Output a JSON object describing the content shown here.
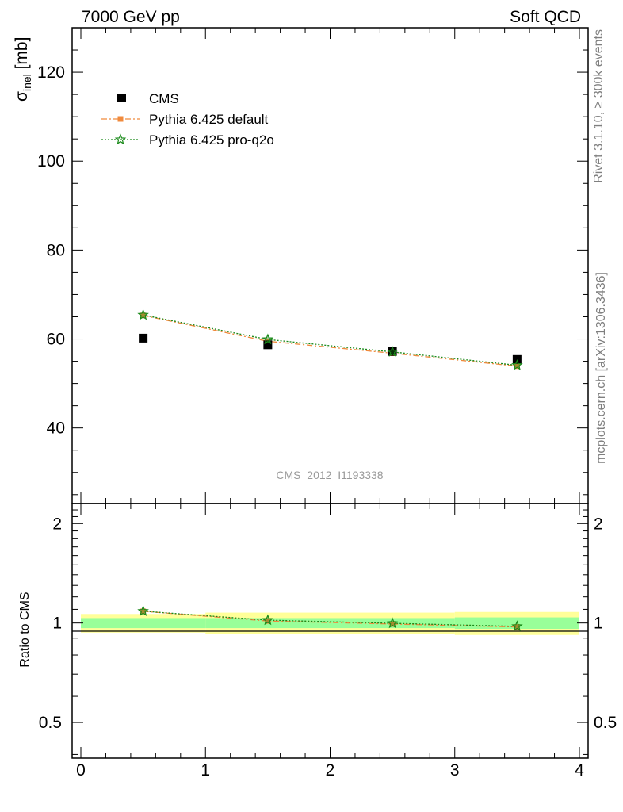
{
  "header": {
    "left": "7000 GeV pp",
    "right": "Soft QCD"
  },
  "side_text": {
    "rivet": "Rivet 3.1.10, ≥ 300k events",
    "mcplots": "mcplots.cern.ch [arXiv:1306.3436]"
  },
  "analysis_id": "CMS_2012_I1193338",
  "colors": {
    "cms": "#000000",
    "pythia_default": "#f08a3c",
    "pythia_proq2o": "#1a8a1a",
    "band_inner": "#99ff99",
    "band_outer": "#ffff99"
  },
  "icons": {
    "cms_marker": "filled-square",
    "pythia_default_marker": "filled-square",
    "pythia_proq2o_marker": "open-star"
  },
  "chart_data": [
    {
      "type": "scatter",
      "panel": "main",
      "ylabel": "σinel [mb]",
      "ylabel_main": "σ",
      "ylabel_sub": "inel",
      "ylabel_unit": " [mb]",
      "xlim": [
        -0.07,
        4.07
      ],
      "ylim": [
        23,
        130
      ],
      "yticks": [
        40,
        60,
        80,
        100,
        120
      ],
      "xticks": [
        0,
        1,
        2,
        3,
        4
      ],
      "legend_position": "top-left",
      "series": [
        {
          "key": "cms",
          "name": "CMS",
          "x": [
            0.5,
            1.5,
            2.5,
            3.5
          ],
          "y": [
            60.2,
            58.7,
            57.2,
            55.4
          ]
        },
        {
          "key": "pythia_default",
          "name": "Pythia 6.425 default",
          "x": [
            0.5,
            1.5,
            2.5,
            3.5
          ],
          "y": [
            65.3,
            59.5,
            56.8,
            53.9
          ]
        },
        {
          "key": "pythia_proq2o",
          "name": "Pythia 6.425 pro-q2o",
          "x": [
            0.5,
            1.5,
            2.5,
            3.5
          ],
          "y": [
            65.4,
            59.9,
            57.1,
            54.1
          ]
        }
      ]
    },
    {
      "type": "line",
      "panel": "ratio",
      "ylabel": "Ratio to CMS",
      "ylim": [
        0.39,
        2.3
      ],
      "yticks": [
        0.5,
        1,
        2
      ],
      "ytick_labels": [
        "0.5",
        "1",
        "2"
      ],
      "xticks": [
        0,
        1,
        2,
        3,
        4
      ],
      "xtick_labels": [
        "0",
        "1",
        "2",
        "3",
        "4"
      ],
      "bands": [
        {
          "x0": 0,
          "x1": 1,
          "inner": [
            0.965,
            1.035
          ],
          "outer": [
            0.935,
            1.065
          ]
        },
        {
          "x0": 1,
          "x1": 2,
          "inner": [
            0.965,
            1.035
          ],
          "outer": [
            0.925,
            1.075
          ]
        },
        {
          "x0": 2,
          "x1": 3,
          "inner": [
            0.965,
            1.035
          ],
          "outer": [
            0.925,
            1.075
          ]
        },
        {
          "x0": 3,
          "x1": 4,
          "inner": [
            0.96,
            1.04
          ],
          "outer": [
            0.92,
            1.08
          ]
        }
      ],
      "series": [
        {
          "key": "pythia_default",
          "x": [
            0.5,
            1.5,
            2.5,
            3.5
          ],
          "y": [
            1.085,
            1.014,
            0.993,
            0.973
          ]
        },
        {
          "key": "pythia_proq2o",
          "x": [
            0.5,
            1.5,
            2.5,
            3.5
          ],
          "y": [
            1.086,
            1.02,
            0.998,
            0.977
          ]
        }
      ]
    }
  ]
}
